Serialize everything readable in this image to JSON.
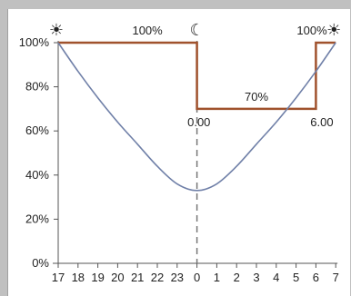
{
  "chart_data": {
    "type": "line",
    "x_tick_labels": [
      "17",
      "18",
      "19",
      "20",
      "21",
      "22",
      "23",
      "0",
      "1",
      "2",
      "3",
      "4",
      "5",
      "6",
      "7"
    ],
    "y_tick_labels": [
      "0%",
      "20%",
      "40%",
      "60%",
      "80%",
      "100%"
    ],
    "ylim": [
      0,
      1
    ],
    "grid": false,
    "series": [
      {
        "color": "#a0522d",
        "kind": "step",
        "points": [
          [
            17,
            1.0
          ],
          [
            24,
            1.0
          ],
          [
            24,
            0.7
          ],
          [
            30,
            0.7
          ],
          [
            30,
            1.0
          ],
          [
            31,
            1.0
          ]
        ]
      },
      {
        "color": "#7080a8",
        "kind": "curve",
        "points": [
          [
            17,
            1.0
          ],
          [
            18,
            0.87
          ],
          [
            19,
            0.75
          ],
          [
            20,
            0.64
          ],
          [
            21,
            0.54
          ],
          [
            22,
            0.44
          ],
          [
            23,
            0.36
          ],
          [
            24,
            0.33
          ],
          [
            25,
            0.36
          ],
          [
            26,
            0.44
          ],
          [
            27,
            0.54
          ],
          [
            28,
            0.64
          ],
          [
            29,
            0.75
          ],
          [
            30,
            0.87
          ],
          [
            31,
            1.0
          ]
        ]
      }
    ],
    "markers": {
      "vertical_dashed_at": 24,
      "symbols": [
        "☀",
        "☾",
        "☀"
      ]
    },
    "annotations": [
      {
        "text": "100%",
        "x": 21.5,
        "y": 1.0,
        "anchor": "above"
      },
      {
        "text": "100%",
        "x": 29.8,
        "y": 1.0,
        "anchor": "above"
      },
      {
        "text": "70%",
        "x": 27.0,
        "y": 0.7,
        "anchor": "above"
      },
      {
        "text": "0.00",
        "x": 24.1,
        "y": 0.7,
        "anchor": "below"
      },
      {
        "text": "6.00",
        "x": 30.3,
        "y": 0.7,
        "anchor": "below"
      }
    ]
  }
}
